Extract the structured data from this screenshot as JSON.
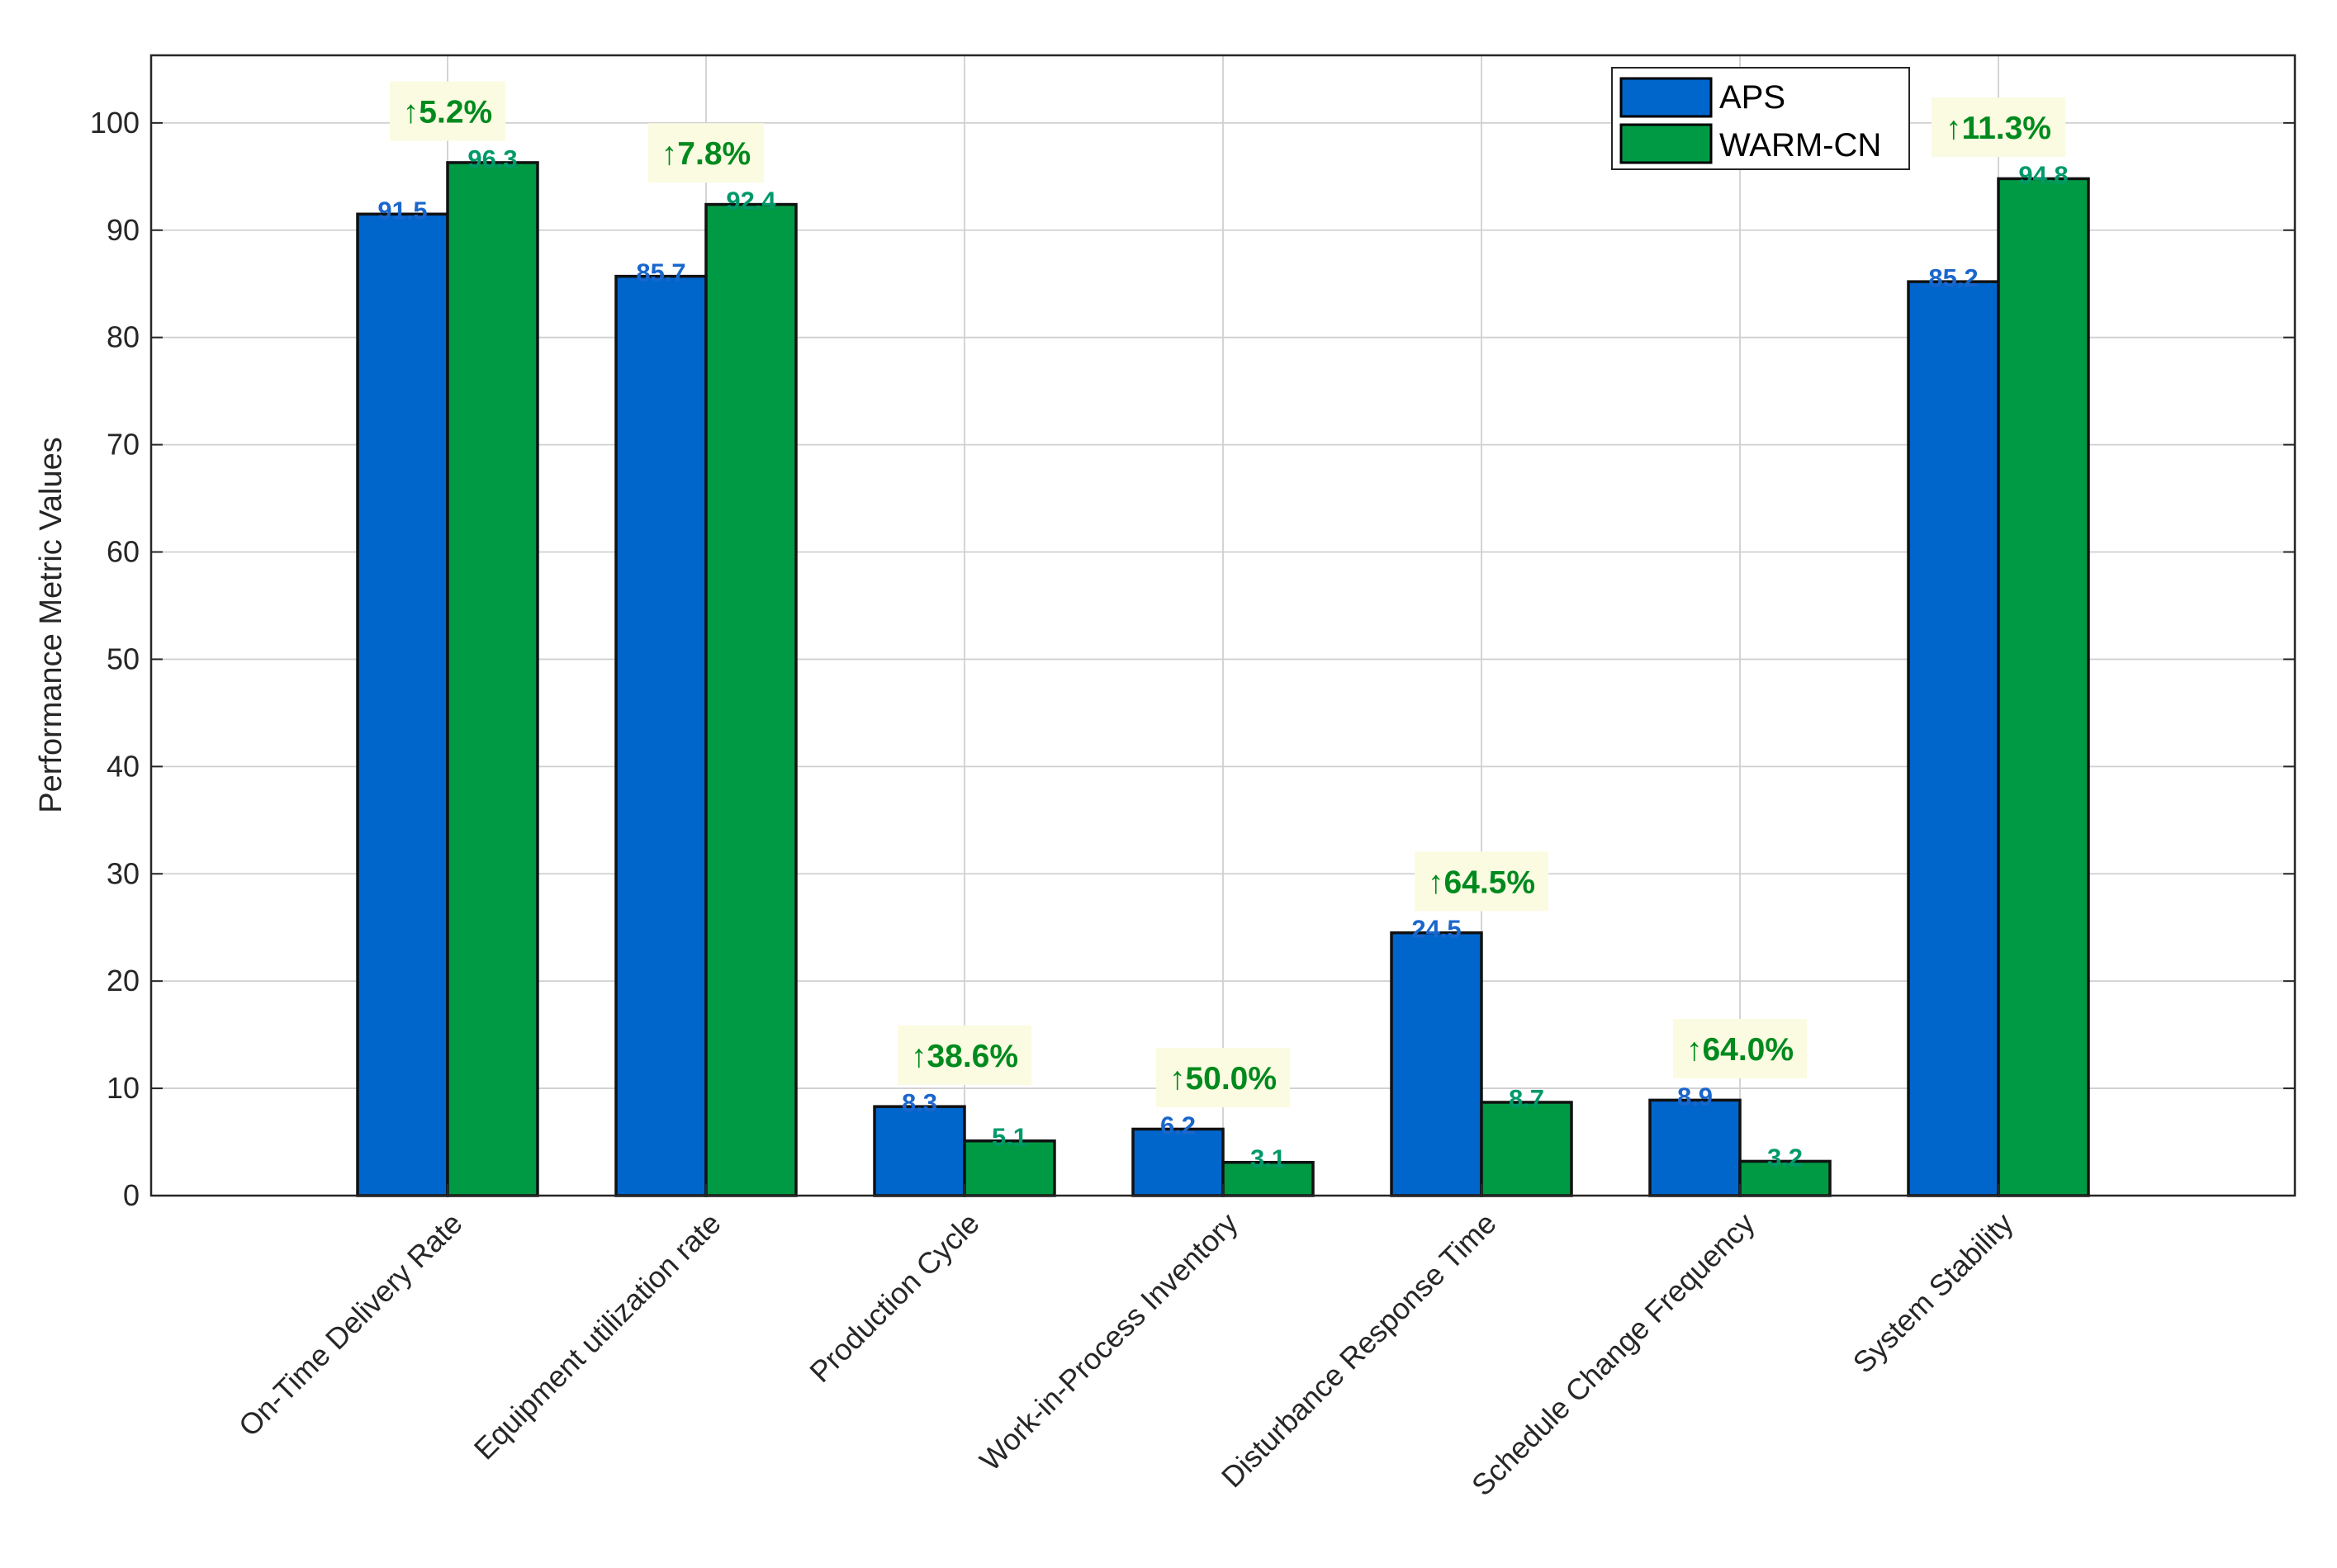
{
  "chart_data": {
    "type": "bar",
    "title": "",
    "xlabel": "",
    "ylabel": "Performance Metric Values",
    "ylim": [
      0,
      106.3
    ],
    "yticks": [
      0,
      10,
      20,
      30,
      40,
      50,
      60,
      70,
      80,
      90,
      100
    ],
    "grid": true,
    "legend_position": "top-right",
    "categories": [
      "On-Time Delivery Rate",
      "Equipment utilization rate",
      "Production Cycle",
      "Work-in-Process Inventory",
      "Disturbance Response Time",
      "Schedule Change Frequency",
      "System Stability"
    ],
    "series": [
      {
        "name": "APS",
        "color": "#0066cc",
        "label_color": "#1a66cc",
        "values": [
          91.5,
          85.7,
          8.3,
          6.2,
          24.5,
          8.9,
          85.2
        ]
      },
      {
        "name": "WARM-CN",
        "color": "#009944",
        "label_color": "#00996a",
        "values": [
          96.3,
          92.4,
          5.1,
          3.1,
          8.7,
          3.2,
          94.8
        ]
      }
    ],
    "annotations": [
      "↑5.2%",
      "↑7.8%",
      "↑38.6%",
      "↑50.0%",
      "↑64.5%",
      "↑64.0%",
      "↑11.3%"
    ],
    "annotation_bg": "#fbfbe2",
    "annotation_color": "#008a1e"
  }
}
